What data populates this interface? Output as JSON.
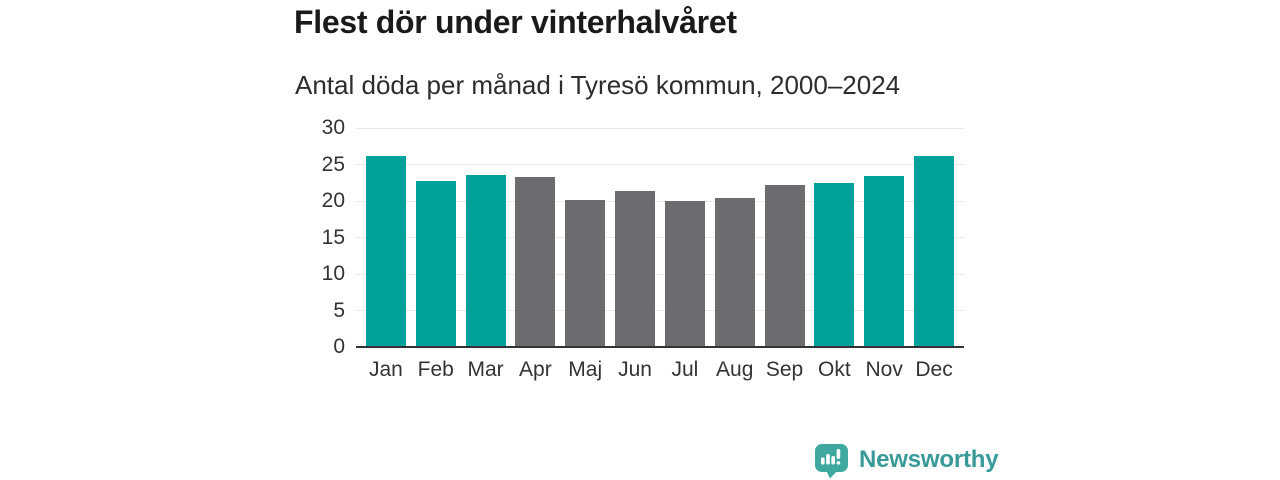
{
  "header": {
    "title": "Flest dör under vinterhalvåret",
    "subtitle": "Antal döda per månad i Tyresö kommun, 2000–2024"
  },
  "chart_data": {
    "type": "bar",
    "title": "Flest dör under vinterhalvåret",
    "subtitle": "Antal döda per månad i Tyresö kommun, 2000–2024",
    "categories": [
      "Jan",
      "Feb",
      "Mar",
      "Apr",
      "Maj",
      "Jun",
      "Jul",
      "Aug",
      "Sep",
      "Okt",
      "Nov",
      "Dec"
    ],
    "values": [
      26.1,
      22.7,
      23.5,
      23.3,
      20.2,
      21.4,
      20.0,
      20.4,
      22.2,
      22.4,
      23.4,
      26.2
    ],
    "highlighted": [
      true,
      true,
      true,
      false,
      false,
      false,
      false,
      false,
      false,
      true,
      true,
      true
    ],
    "ylim": [
      0,
      30
    ],
    "yticks": [
      0,
      5,
      10,
      15,
      20,
      25,
      30
    ],
    "xlabel": "",
    "ylabel": "",
    "grid": true,
    "legend": "none",
    "colors": {
      "highlight": "#00a19a",
      "muted": "#6b6b70",
      "gridline": "#e8e8e8",
      "axis_line": "#333333",
      "tick_text": "#333333"
    }
  },
  "footer": {
    "brand": "Newsworthy",
    "logo_icon": "speech-bubble-bar-chart",
    "logo_colors": {
      "bubble": "#3fa9a0",
      "marks": "#ffffff"
    }
  }
}
